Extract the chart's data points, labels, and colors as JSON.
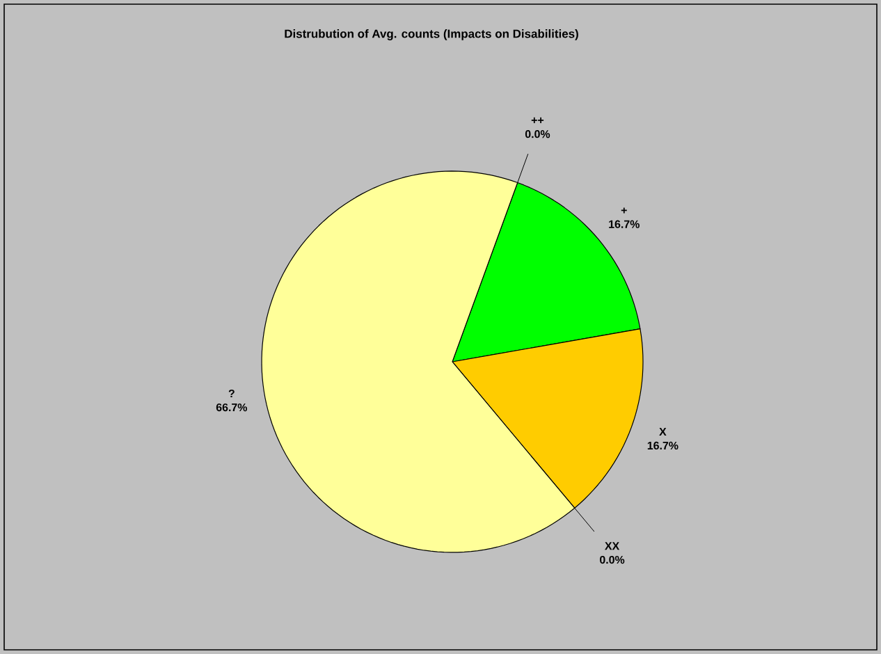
{
  "chart_data": {
    "type": "pie",
    "title": "Distrubution of Avg. counts (Impacts on Disabilities)",
    "categories": [
      "++",
      "+",
      "X",
      "XX",
      "?"
    ],
    "values": [
      0,
      16.7,
      16.7,
      0,
      66.7
    ],
    "value_labels": [
      "0.0%",
      "16.7%",
      "16.7%",
      "0.0%",
      "66.7%"
    ],
    "colors": [
      "#9999ff",
      "#00ff00",
      "#ffcc00",
      "#ff8080",
      "#ffff99"
    ]
  }
}
